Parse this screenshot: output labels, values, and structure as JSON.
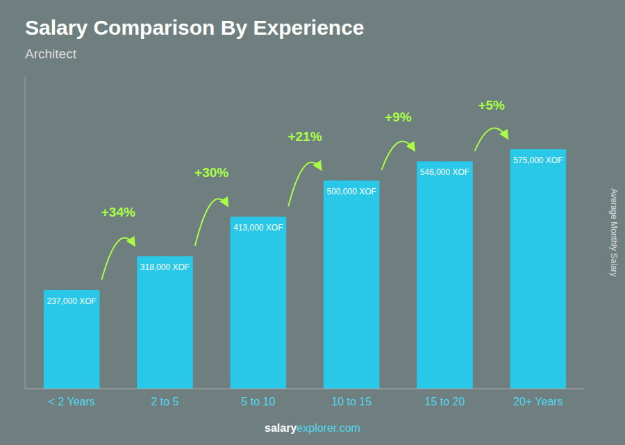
{
  "chart_data": {
    "type": "bar",
    "title": "Salary Comparison By Experience",
    "subtitle": "Architect",
    "ylabel": "Average Monthly Salary",
    "categories": [
      "< 2 Years",
      "2 to 5",
      "5 to 10",
      "10 to 15",
      "15 to 20",
      "20+ Years"
    ],
    "values": [
      237000,
      318000,
      413000,
      500000,
      546000,
      575000
    ],
    "value_labels": [
      "237,000 XOF",
      "318,000 XOF",
      "413,000 XOF",
      "500,000 XOF",
      "546,000 XOF",
      "575,000 XOF"
    ],
    "data_labels": true,
    "color": "#29c8e8",
    "ylim": [
      0,
      750000
    ],
    "tick_labels": "x",
    "grid": false,
    "annotations": [
      "+34%",
      "+30%",
      "+21%",
      "+9%",
      "+5%"
    ],
    "footer": [
      "salary",
      "explorer.com"
    ]
  }
}
